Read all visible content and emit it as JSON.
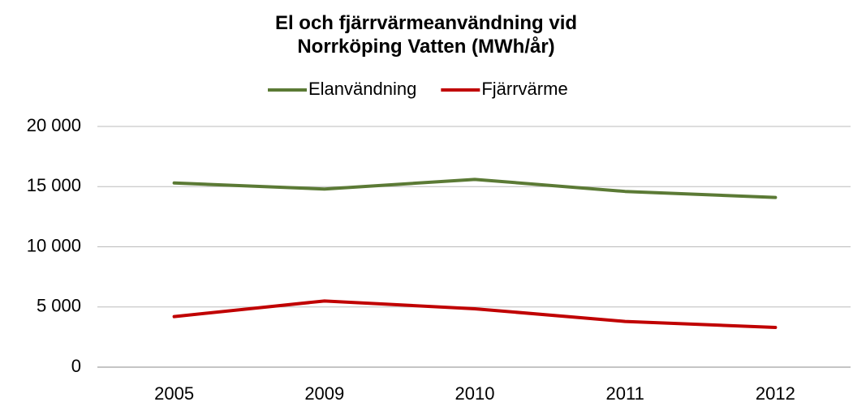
{
  "chart_data": {
    "type": "line",
    "title": "El och fjärrvärmeanvändning vid Norrköping Vatten (MWh/år)",
    "categories": [
      "2005",
      "2009",
      "2010",
      "2011",
      "2012"
    ],
    "series": [
      {
        "name": "Elanvändning",
        "color": "#5b7a35",
        "values": [
          15300,
          14800,
          15600,
          14600,
          14100
        ]
      },
      {
        "name": "Fjärrvärme",
        "color": "#c00000",
        "values": [
          4200,
          5500,
          4850,
          3800,
          3300
        ]
      }
    ],
    "ylim": [
      0,
      20000
    ],
    "yticks": [
      0,
      {
        "value": 5000,
        "label": "5 000"
      },
      {
        "value": 10000,
        "label": "10 000"
      },
      {
        "value": 15000,
        "label": "15 000"
      },
      {
        "value": 20000,
        "label": "20 000"
      }
    ],
    "grid": true,
    "legend": "top"
  }
}
